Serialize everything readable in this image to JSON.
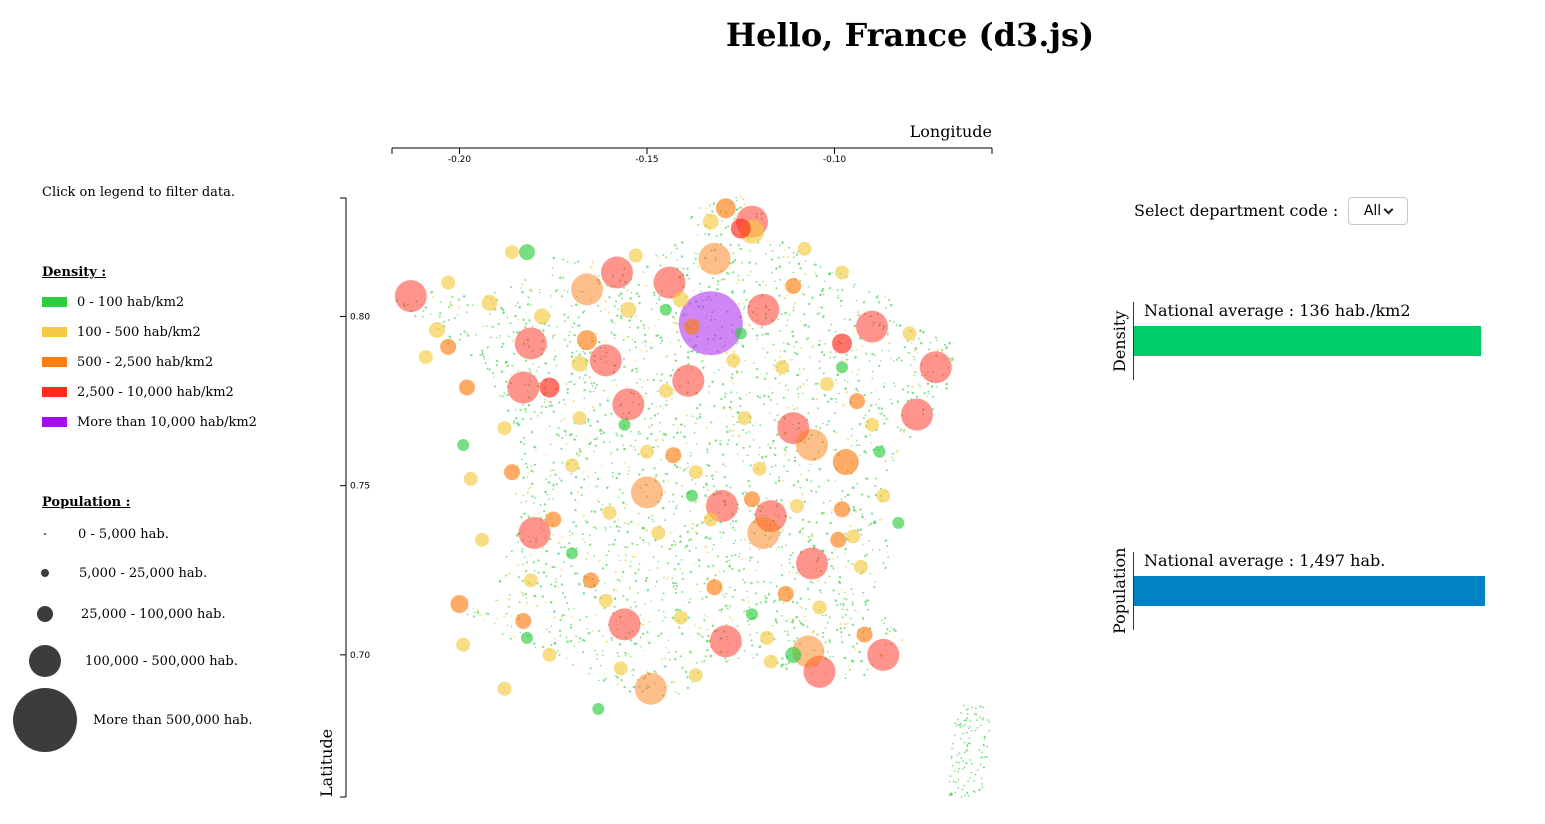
{
  "page": {
    "title": "Hello, France (d3.js)"
  },
  "legend": {
    "hint": "Click on legend to filter data.",
    "density": {
      "heading": "Density :",
      "items": [
        {
          "label": "0 - 100 hab/km2",
          "color": "#2ecc40"
        },
        {
          "label": "100 - 500 hab/km2",
          "color": "#f5cb42"
        },
        {
          "label": "500 - 2,500 hab/km2",
          "color": "#fd7e14"
        },
        {
          "label": "2,500 - 10,000 hab/km2",
          "color": "#ff2a1a"
        },
        {
          "label": "More than 10,000 hab/km2",
          "color": "#a30ef0"
        }
      ]
    },
    "population": {
      "heading": "Population :",
      "items": [
        {
          "label": "0 - 5,000 hab."
        },
        {
          "label": "5,000 - 25,000 hab."
        },
        {
          "label": "25,000 - 100,000 hab."
        },
        {
          "label": "100,000 - 500,000 hab."
        },
        {
          "label": "More than 500,000 hab."
        }
      ],
      "circle_color": "#3e3c3a"
    }
  },
  "chart_data": {
    "type": "scatter",
    "xlabel": "Longitude",
    "ylabel": "Latitude",
    "xlim": [
      -0.218,
      -0.058
    ],
    "ylim": [
      0.658,
      0.835
    ],
    "xticks": [
      -0.2,
      -0.15,
      -0.1
    ],
    "yticks": [
      0.7,
      0.75,
      0.8
    ],
    "xtick_labels": [
      "-0.20",
      "-0.15",
      "-0.10"
    ],
    "ytick_labels": [
      "0.70",
      "0.75",
      "0.80"
    ],
    "x_axis_position": "top",
    "y_axis_position": "left",
    "grid": false,
    "series": [
      {
        "color": "#ff2a1a",
        "points": [
          {
            "x": -0.133,
            "y": 0.798,
            "r": 32,
            "color": "#a30ef0"
          },
          {
            "x": -0.122,
            "y": 0.828,
            "r": 16
          },
          {
            "x": -0.158,
            "y": 0.813,
            "r": 16
          },
          {
            "x": -0.213,
            "y": 0.806,
            "r": 16
          },
          {
            "x": -0.181,
            "y": 0.792,
            "r": 16
          },
          {
            "x": -0.161,
            "y": 0.787,
            "r": 16
          },
          {
            "x": -0.183,
            "y": 0.779,
            "r": 16
          },
          {
            "x": -0.155,
            "y": 0.774,
            "r": 16
          },
          {
            "x": -0.139,
            "y": 0.781,
            "r": 16
          },
          {
            "x": -0.144,
            "y": 0.81,
            "r": 16
          },
          {
            "x": -0.119,
            "y": 0.802,
            "r": 16
          },
          {
            "x": -0.09,
            "y": 0.797,
            "r": 16
          },
          {
            "x": -0.073,
            "y": 0.785,
            "r": 16
          },
          {
            "x": -0.078,
            "y": 0.771,
            "r": 16
          },
          {
            "x": -0.111,
            "y": 0.767,
            "r": 16
          },
          {
            "x": -0.13,
            "y": 0.744,
            "r": 16
          },
          {
            "x": -0.117,
            "y": 0.741,
            "r": 16
          },
          {
            "x": -0.18,
            "y": 0.736,
            "r": 16
          },
          {
            "x": -0.156,
            "y": 0.709,
            "r": 16
          },
          {
            "x": -0.129,
            "y": 0.704,
            "r": 16
          },
          {
            "x": -0.106,
            "y": 0.727,
            "r": 16
          },
          {
            "x": -0.104,
            "y": 0.695,
            "r": 16
          },
          {
            "x": -0.087,
            "y": 0.7,
            "r": 16
          },
          {
            "x": -0.176,
            "y": 0.779,
            "r": 10
          },
          {
            "x": -0.098,
            "y": 0.792,
            "r": 10
          },
          {
            "x": -0.125,
            "y": 0.826,
            "r": 10
          }
        ]
      },
      {
        "color": "#fd7e14",
        "points": [
          {
            "x": -0.132,
            "y": 0.817,
            "r": 16
          },
          {
            "x": -0.166,
            "y": 0.808,
            "r": 16
          },
          {
            "x": -0.106,
            "y": 0.762,
            "r": 16
          },
          {
            "x": -0.15,
            "y": 0.748,
            "r": 16
          },
          {
            "x": -0.119,
            "y": 0.736,
            "r": 16
          },
          {
            "x": -0.107,
            "y": 0.701,
            "r": 16
          },
          {
            "x": -0.149,
            "y": 0.69,
            "r": 16
          },
          {
            "x": -0.097,
            "y": 0.757,
            "r": 13
          },
          {
            "x": -0.129,
            "y": 0.832,
            "r": 10
          },
          {
            "x": -0.166,
            "y": 0.793,
            "r": 10
          },
          {
            "x": -0.203,
            "y": 0.791,
            "r": 8
          },
          {
            "x": -0.198,
            "y": 0.779,
            "r": 8
          },
          {
            "x": -0.186,
            "y": 0.754,
            "r": 8
          },
          {
            "x": -0.175,
            "y": 0.74,
            "r": 8
          },
          {
            "x": -0.165,
            "y": 0.722,
            "r": 8
          },
          {
            "x": -0.143,
            "y": 0.759,
            "r": 8
          },
          {
            "x": -0.122,
            "y": 0.746,
            "r": 8
          },
          {
            "x": -0.094,
            "y": 0.775,
            "r": 8
          },
          {
            "x": -0.098,
            "y": 0.743,
            "r": 8
          },
          {
            "x": -0.2,
            "y": 0.715,
            "r": 9
          },
          {
            "x": -0.183,
            "y": 0.71,
            "r": 8
          },
          {
            "x": -0.132,
            "y": 0.72,
            "r": 8
          },
          {
            "x": -0.092,
            "y": 0.706,
            "r": 8
          },
          {
            "x": -0.099,
            "y": 0.734,
            "r": 8
          },
          {
            "x": -0.113,
            "y": 0.718,
            "r": 8
          },
          {
            "x": -0.138,
            "y": 0.797,
            "r": 8
          },
          {
            "x": -0.111,
            "y": 0.809,
            "r": 8
          }
        ]
      },
      {
        "color": "#f5cb42",
        "points": [
          {
            "x": -0.122,
            "y": 0.825,
            "r": 12
          },
          {
            "x": -0.133,
            "y": 0.828,
            "r": 8
          },
          {
            "x": -0.141,
            "y": 0.805,
            "r": 8
          },
          {
            "x": -0.155,
            "y": 0.802,
            "r": 8
          },
          {
            "x": -0.168,
            "y": 0.786,
            "r": 8
          },
          {
            "x": -0.178,
            "y": 0.8,
            "r": 8
          },
          {
            "x": -0.192,
            "y": 0.804,
            "r": 8
          },
          {
            "x": -0.206,
            "y": 0.796,
            "r": 8
          },
          {
            "x": -0.209,
            "y": 0.788,
            "r": 7
          },
          {
            "x": -0.188,
            "y": 0.767,
            "r": 7
          },
          {
            "x": -0.17,
            "y": 0.756,
            "r": 7
          },
          {
            "x": -0.16,
            "y": 0.742,
            "r": 7
          },
          {
            "x": -0.147,
            "y": 0.736,
            "r": 7
          },
          {
            "x": -0.137,
            "y": 0.754,
            "r": 7
          },
          {
            "x": -0.124,
            "y": 0.77,
            "r": 7
          },
          {
            "x": -0.114,
            "y": 0.785,
            "r": 7
          },
          {
            "x": -0.102,
            "y": 0.78,
            "r": 7
          },
          {
            "x": -0.09,
            "y": 0.768,
            "r": 7
          },
          {
            "x": -0.087,
            "y": 0.747,
            "r": 7
          },
          {
            "x": -0.093,
            "y": 0.726,
            "r": 7
          },
          {
            "x": -0.104,
            "y": 0.714,
            "r": 7
          },
          {
            "x": -0.118,
            "y": 0.705,
            "r": 7
          },
          {
            "x": -0.141,
            "y": 0.711,
            "r": 7
          },
          {
            "x": -0.161,
            "y": 0.716,
            "r": 7
          },
          {
            "x": -0.181,
            "y": 0.722,
            "r": 7
          },
          {
            "x": -0.194,
            "y": 0.734,
            "r": 7
          },
          {
            "x": -0.176,
            "y": 0.7,
            "r": 7
          },
          {
            "x": -0.157,
            "y": 0.696,
            "r": 7
          },
          {
            "x": -0.137,
            "y": 0.694,
            "r": 7
          },
          {
            "x": -0.117,
            "y": 0.698,
            "r": 7
          },
          {
            "x": -0.15,
            "y": 0.76,
            "r": 7
          },
          {
            "x": -0.133,
            "y": 0.74,
            "r": 7
          },
          {
            "x": -0.11,
            "y": 0.744,
            "r": 7
          },
          {
            "x": -0.12,
            "y": 0.755,
            "r": 7
          },
          {
            "x": -0.145,
            "y": 0.778,
            "r": 7
          },
          {
            "x": -0.127,
            "y": 0.787,
            "r": 7
          },
          {
            "x": -0.098,
            "y": 0.813,
            "r": 7
          },
          {
            "x": -0.108,
            "y": 0.82,
            "r": 7
          },
          {
            "x": -0.153,
            "y": 0.818,
            "r": 7
          },
          {
            "x": -0.186,
            "y": 0.819,
            "r": 7
          },
          {
            "x": -0.203,
            "y": 0.81,
            "r": 7
          },
          {
            "x": -0.197,
            "y": 0.752,
            "r": 7
          },
          {
            "x": -0.168,
            "y": 0.77,
            "r": 7
          },
          {
            "x": -0.08,
            "y": 0.795,
            "r": 7
          },
          {
            "x": -0.095,
            "y": 0.735,
            "r": 7
          },
          {
            "x": -0.188,
            "y": 0.69,
            "r": 7
          },
          {
            "x": -0.199,
            "y": 0.703,
            "r": 7
          }
        ]
      },
      {
        "color": "#2ecc40",
        "points": [
          {
            "x": -0.182,
            "y": 0.819,
            "r": 8
          },
          {
            "x": -0.145,
            "y": 0.802,
            "r": 6
          },
          {
            "x": -0.125,
            "y": 0.795,
            "r": 6
          },
          {
            "x": -0.098,
            "y": 0.785,
            "r": 6
          },
          {
            "x": -0.17,
            "y": 0.73,
            "r": 6
          },
          {
            "x": -0.122,
            "y": 0.712,
            "r": 6
          },
          {
            "x": -0.083,
            "y": 0.739,
            "r": 6
          },
          {
            "x": -0.199,
            "y": 0.762,
            "r": 6
          },
          {
            "x": -0.156,
            "y": 0.768,
            "r": 6
          },
          {
            "x": -0.111,
            "y": 0.7,
            "r": 8
          },
          {
            "x": -0.163,
            "y": 0.684,
            "r": 6
          },
          {
            "x": -0.182,
            "y": 0.705,
            "r": 6
          },
          {
            "x": -0.138,
            "y": 0.747,
            "r": 6
          },
          {
            "x": -0.088,
            "y": 0.76,
            "r": 6
          }
        ]
      }
    ]
  },
  "department_select": {
    "label": "Select department code :",
    "value": "All"
  },
  "averages": {
    "density": {
      "axis_label": "Density",
      "text": "National average : 136 hab./km2",
      "value": 136,
      "color": "#00cc6a"
    },
    "population": {
      "axis_label": "Population",
      "text": "National average : 1,497 hab.",
      "value": 1497,
      "color": "#0082c4"
    }
  }
}
